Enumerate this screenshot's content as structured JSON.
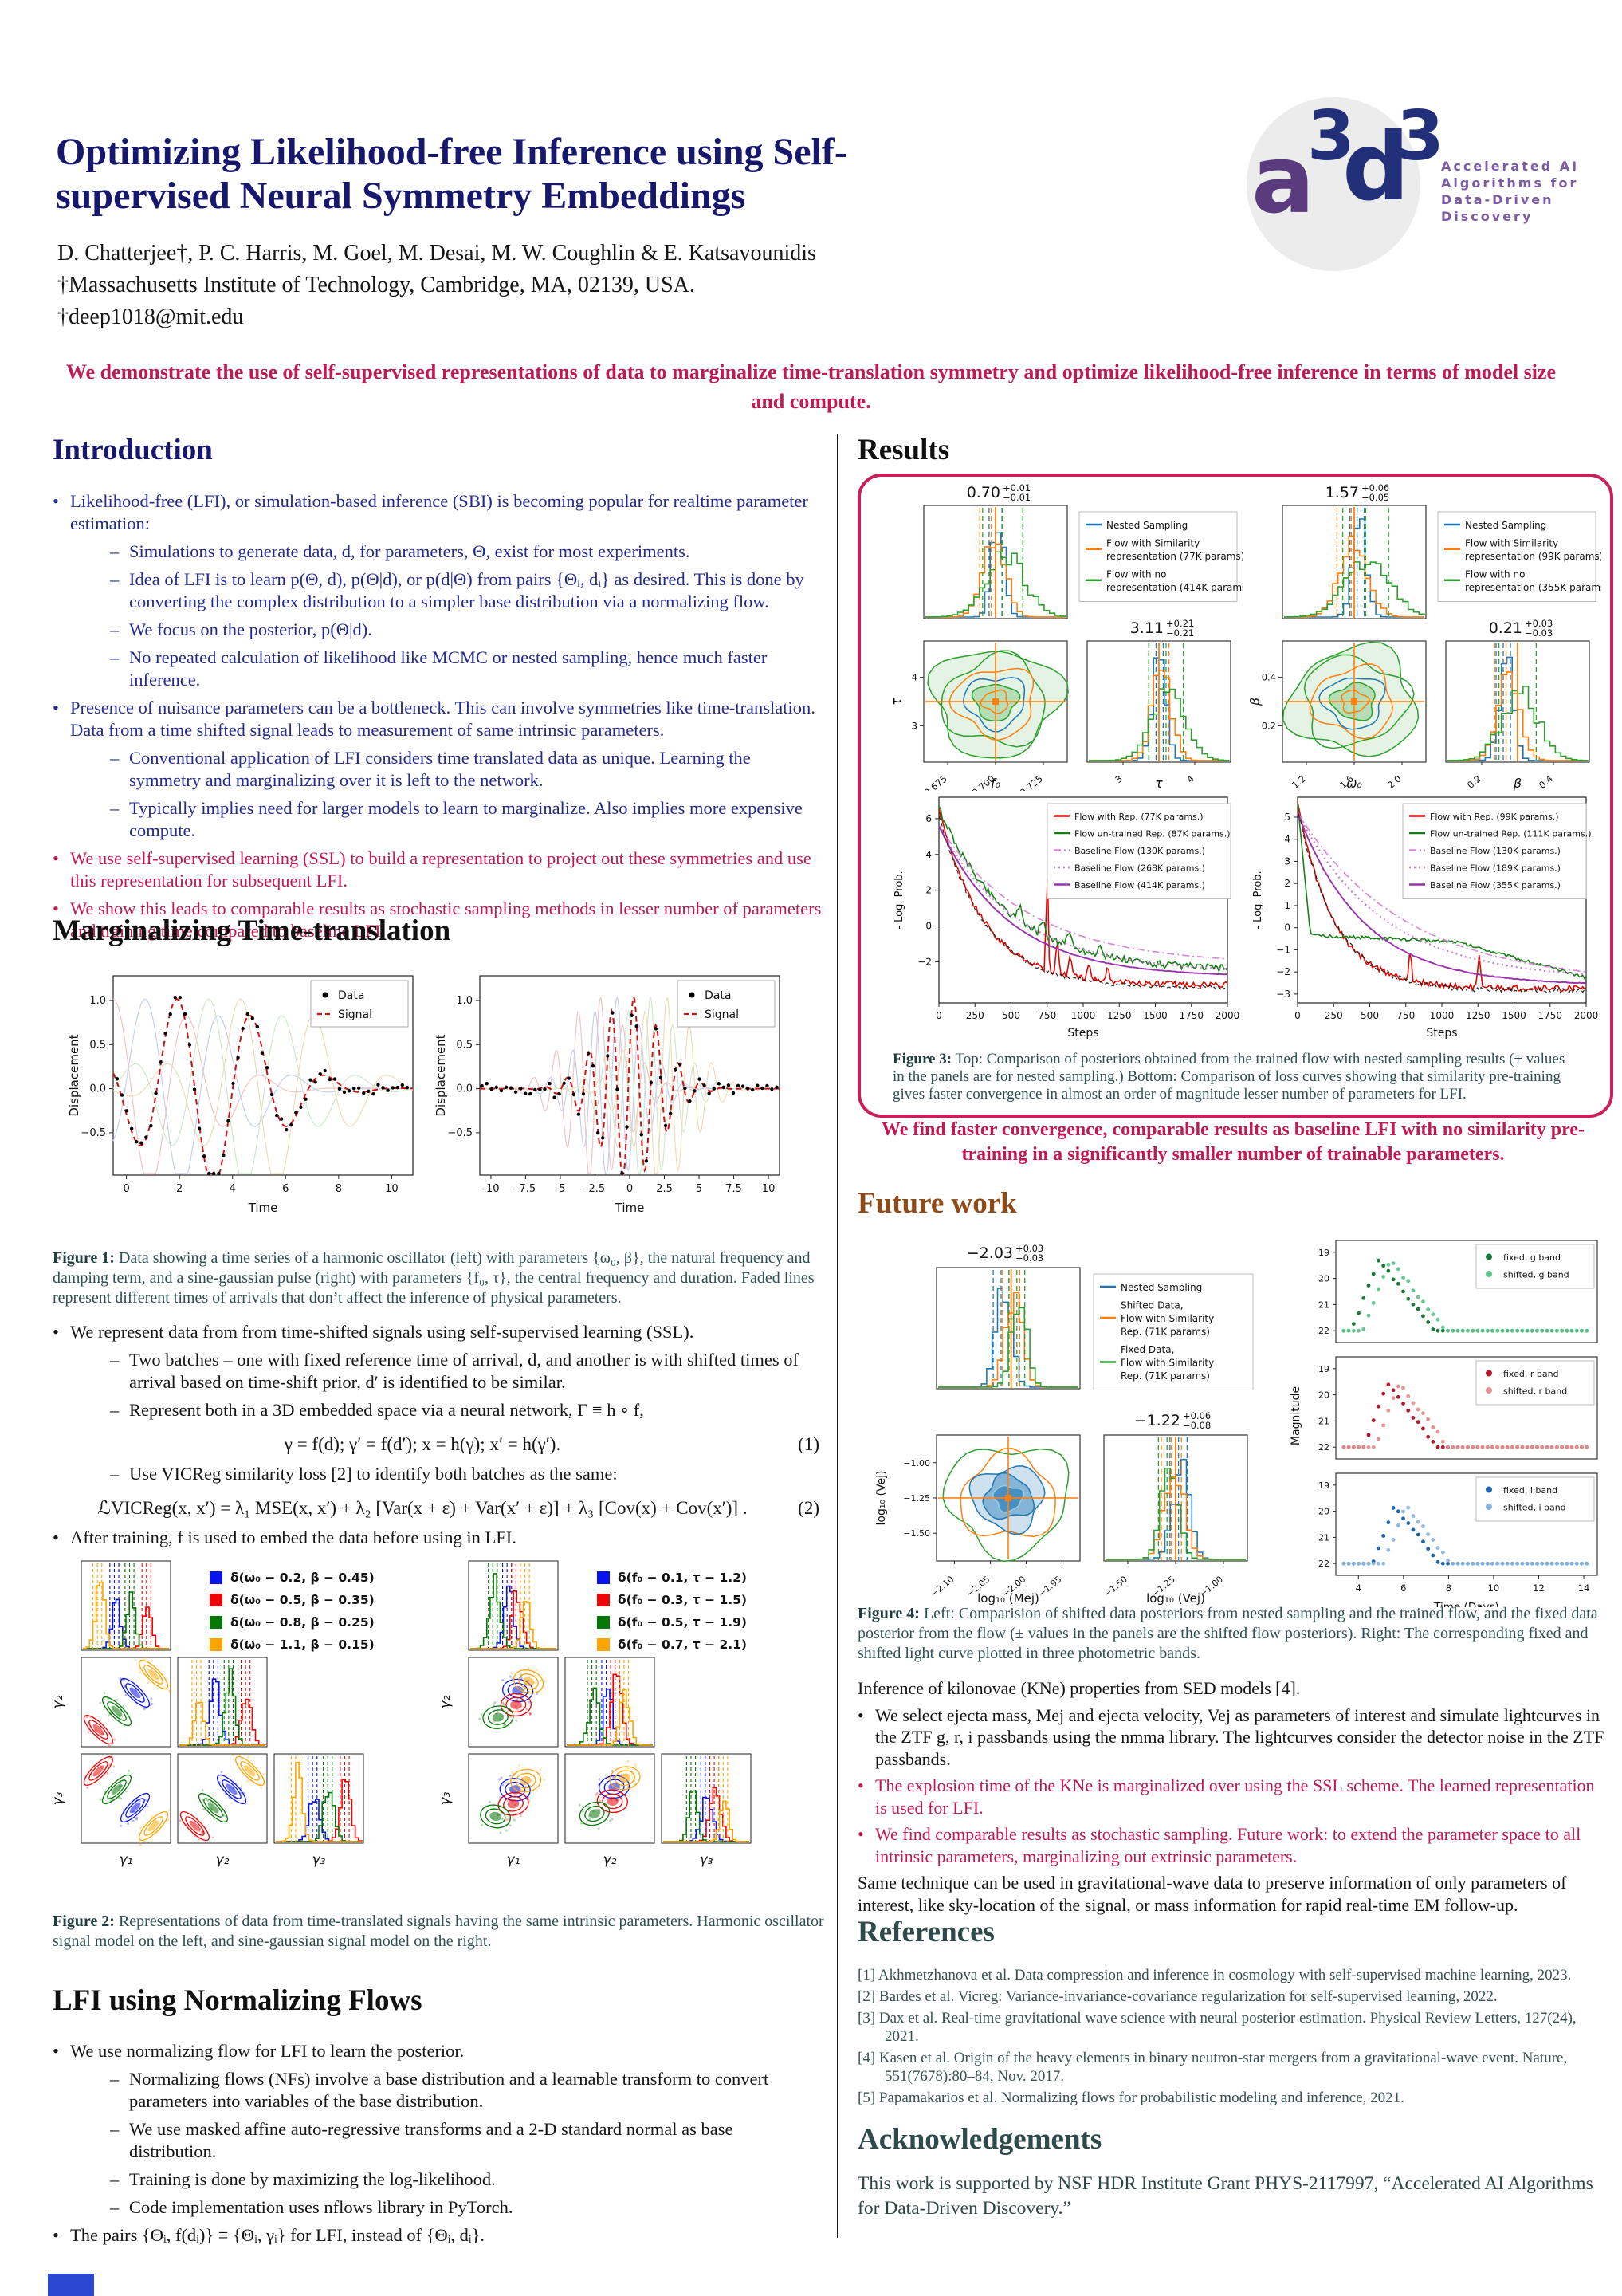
{
  "header": {
    "title_line1": "Optimizing Likelihood-free Inference using Self-",
    "title_line2": "supervised Neural Symmetry Embeddings",
    "authors": "D. Chatterjee†, P. C. Harris, M. Goel, M. Desai, M. W. Coughlin & E. Katsavounidis",
    "affiliation": "†Massachusetts Institute of Technology, Cambridge, MA, 02139, USA.",
    "email": "†deep1018@mit.edu",
    "logo": {
      "letters": [
        "a",
        "3",
        "d",
        "3"
      ],
      "tagline": [
        "Accelerated AI",
        "Algorithms for",
        "Data-Driven",
        "Discovery"
      ]
    }
  },
  "abstract": "We demonstrate the use of self-supervised representations of data to marginalize time-translation symmetry and optimize likelihood-free inference in terms of model size and compute.",
  "sections": {
    "introduction": {
      "heading": "Introduction",
      "items": [
        {
          "m": "•",
          "c": "blue",
          "t": "Likelihood-free (LFI), or simulation-based inference (SBI) is becoming popular for realtime parameter estimation:"
        },
        {
          "m": "–",
          "c": "blue",
          "t": "Simulations to generate data, d, for parameters, Θ, exist for most experiments."
        },
        {
          "m": "–",
          "c": "blue",
          "t": "Idea of LFI is to learn p(Θ, d), p(Θ|d), or p(d|Θ) from pairs {Θᵢ, dᵢ} as desired. This is done by converting the complex distribution to a simpler base distribution via a normalizing flow."
        },
        {
          "m": "–",
          "c": "blue",
          "t": "We focus on the posterior, p(Θ|d)."
        },
        {
          "m": "–",
          "c": "blue",
          "t": "No repeated calculation of likelihood like MCMC or nested sampling, hence much faster inference."
        },
        {
          "m": "•",
          "c": "blue",
          "t": "Presence of nuisance parameters can be a bottleneck.  This can involve symmetries like time-translation. Data from a time shifted signal leads to measurement of same intrinsic parameters."
        },
        {
          "m": "–",
          "c": "blue",
          "t": "Conventional application of LFI considers time translated data as unique. Learning the symmetry and marginalizing over it is left to the network."
        },
        {
          "m": "–",
          "c": "blue",
          "t": "Typically implies need for larger models to learn to marginalize. Also implies more expensive compute."
        },
        {
          "m": "•",
          "c": "red",
          "t": "We use self-supervised learning (SSL) to build a representation to project out these symmetries and use this representation for subsequent LFI."
        },
        {
          "m": "•",
          "c": "red",
          "t": "We show this leads to comparable results as stochastic sampling methods in lesser number of parameters and training time compared to baseline LFI."
        }
      ]
    },
    "marginalizing": {
      "heading": "Marginalizing Time-translation",
      "fig1": {
        "caption_label": "Figure 1:",
        "caption": "Data showing a time series of a harmonic oscillator (left) with parameters {ω₀, β}, the natural frequency and damping term, and a sine-gaussian pulse (right) with parameters {f₀, τ}, the central frequency and duration. Faded lines represent different times of arrivals that don’t affect the inference of physical parameters.",
        "panels": [
          {
            "type": "damped",
            "legend": [
              "Data",
              "Signal"
            ],
            "ylabel": "Displacement",
            "xlabel": "Time",
            "xticks": [
              0,
              2,
              4,
              6,
              8,
              10
            ],
            "yticks": [
              "1.0",
              "0.5",
              "0.0",
              "−0.5"
            ]
          },
          {
            "type": "sinegauss",
            "legend": [
              "Data",
              "Signal"
            ],
            "ylabel": "Displacement",
            "xlabel": "Time",
            "xticks": [
              -10,
              -7.5,
              -5,
              -2.5,
              0,
              2.5,
              5,
              7.5,
              10
            ],
            "yticks": [
              "1.0",
              "0.5",
              "0.0",
              "−0.5"
            ]
          }
        ]
      },
      "items": [
        {
          "m": "•",
          "c": "black",
          "t": "We represent data from from time-shifted signals using self-supervised learning (SSL)."
        },
        {
          "m": "–",
          "c": "black",
          "t": "Two batches – one with fixed reference time of arrival, d, and another is with shifted times of arrival based on time-shift prior, d′ is identified to be similar."
        },
        {
          "m": "–",
          "c": "black",
          "t": "Represent both in a 3D embedded space via a neural network, Γ ≡ h ∘ f,"
        },
        {
          "eq": true,
          "t": "γ = f(d);   γ′ = f(d′);   x = h(γ);   x′ = h(γ′).",
          "num": "(1)"
        },
        {
          "m": "–",
          "c": "black",
          "t": "Use VICReg similarity loss [2] to identify both batches as the same:"
        },
        {
          "eq": true,
          "t": "ℒVICReg(x, x′) = λ₁ MSE(x, x′) + λ₂ [Var(x + ε) + Var(x′ + ε)] + λ₃ [Cov(x) + Cov(x′)] .",
          "num": "(2)"
        },
        {
          "m": "•",
          "c": "black",
          "t": "After training, f is used to embed the data before using in LFI."
        }
      ],
      "fig2": {
        "caption_label": "Figure 2:",
        "caption": "Representations of data from time-translated signals having the same intrinsic parameters. Harmonic oscillator signal model on the left, and sine-gaussian signal model on the right.",
        "plots": [
          {
            "mode": "diag",
            "colors": [
              "#0713ee",
              "#ee0404",
              "#067806",
              "#ffa500"
            ],
            "legend": [
              "δ(ω₀ − 0.2, β − 0.45)",
              "δ(ω₀ − 0.5, β − 0.35)",
              "δ(ω₀ − 0.8, β − 0.25)",
              "δ(ω₀ − 1.1, β − 0.15)"
            ],
            "xlabels": [
              "γ₁",
              "γ₂",
              "γ₃"
            ],
            "ylabels": [
              "γ₂",
              "γ₃"
            ]
          },
          {
            "mode": "cluster",
            "colors": [
              "#0713ee",
              "#ee0404",
              "#067806",
              "#ffa500"
            ],
            "legend": [
              "δ(f₀ − 0.1, τ − 1.2)",
              "δ(f₀ − 0.3, τ − 1.5)",
              "δ(f₀ − 0.5, τ − 1.9)",
              "δ(f₀ − 0.7, τ − 2.1)"
            ],
            "xlabels": [
              "γ₁",
              "γ₂",
              "γ₃"
            ],
            "ylabels": [
              "γ₂",
              "γ₃"
            ]
          }
        ]
      }
    },
    "lfi": {
      "heading": "LFI using Normalizing Flows",
      "items": [
        {
          "m": "•",
          "c": "black",
          "t": "We use normalizing flow for LFI to learn the posterior."
        },
        {
          "m": "–",
          "c": "black",
          "t": "Normalizing flows (NFs) involve a base distribution and a learnable transform to convert parameters into variables of the base distribution."
        },
        {
          "m": "–",
          "c": "black",
          "t": "We use masked affine auto-regressive transforms and a 2-D standard normal as base distribution."
        },
        {
          "m": "–",
          "c": "black",
          "t": "Training is done by maximizing the log-likelihood."
        },
        {
          "m": "–",
          "c": "black",
          "t": "Code implementation uses nflows library in PyTorch."
        },
        {
          "m": "•",
          "c": "black",
          "t": "The pairs {Θᵢ, f(dᵢ)} ≡ {Θᵢ, γᵢ} for LFI, instead of {Θᵢ, dᵢ}."
        }
      ]
    },
    "results": {
      "heading": "Results",
      "fig3": {
        "groups": [
          {
            "title1": {
              "val": "0.70",
              "plus": "+0.01",
              "minus": "−0.01"
            },
            "title2": {
              "val": "3.11",
              "plus": "+0.21",
              "minus": "−0.21"
            },
            "legend": [
              [
                "Nested Sampling"
              ],
              [
                "Flow with Similarity",
                "representation  (77K params)"
              ],
              [
                "Flow with no",
                "representation (414K params)"
              ]
            ],
            "ylabel": "τ",
            "yticks": [
              "4",
              "3"
            ],
            "xticks1": [
              "0.675",
              "0.700",
              "0.725"
            ],
            "xlabel1": "f₀",
            "xticks2": [
              "3",
              "4"
            ],
            "xlabel2": "τ"
          },
          {
            "title1": {
              "val": "1.57",
              "plus": "+0.06",
              "minus": "−0.05"
            },
            "title2": {
              "val": "0.21",
              "plus": "+0.03",
              "minus": "−0.03"
            },
            "legend": [
              [
                "Nested Sampling"
              ],
              [
                "Flow with Similarity",
                "representation  (99K params)"
              ],
              [
                "Flow with no",
                "representation (355K params)"
              ]
            ],
            "ylabel": "β",
            "yticks": [
              "0.4",
              "0.2"
            ],
            "xticks1": [
              "1.2",
              "1.6",
              "2.0"
            ],
            "xlabel1": "ω₀",
            "xticks2": [
              "0.2",
              "0.4"
            ],
            "xlabel2": "β"
          }
        ],
        "loss": [
          {
            "legend": [
              "Flow with Rep. (77K params.)",
              "Flow un-trained Rep. (87K params.)",
              "Baseline Flow (130K params.)",
              "Baseline Flow (268K params.)",
              "Baseline Flow (414K params.)"
            ],
            "ylabel": "- Log. Prob.",
            "xlabel": "Steps",
            "yticks": [
              "6",
              "4",
              "2",
              "0",
              "−2"
            ],
            "xticks": [
              0,
              250,
              500,
              750,
              1000,
              1250,
              1500,
              1750,
              2000
            ]
          },
          {
            "legend": [
              "Flow with Rep. (99K params.)",
              "Flow un-trained Rep. (111K params.)",
              "Baseline Flow (130K params.)",
              "Baseline Flow (189K params.)",
              "Baseline Flow (355K params.)"
            ],
            "ylabel": "- Log. Prob.",
            "xlabel": "Steps",
            "yticks": [
              "5",
              "4",
              "3",
              "2",
              "1",
              "0",
              "−1",
              "−2",
              "−3"
            ],
            "xticks": [
              0,
              250,
              500,
              750,
              1000,
              1250,
              1500,
              1750,
              2000
            ]
          }
        ],
        "caption_label": "Figure 3:",
        "caption": "Top: Comparison of posteriors obtained from the trained flow with nested sampling results (± values in the panels are for nested sampling.) Bottom: Comparison of loss curves showing that similarity pre-training gives faster convergence in almost an order of magnitude lesser number of parameters for LFI."
      },
      "highlight": "We find faster convergence, comparable results as baseline LFI with no similarity pre-training in a significantly smaller number of trainable parameters."
    },
    "futurework": {
      "heading": "Future work",
      "fig4": {
        "corner": {
          "title1": {
            "val": "−2.03",
            "plus": "+0.03",
            "minus": "−0.03"
          },
          "title2": {
            "val": "−1.22",
            "plus": "+0.06",
            "minus": "−0.08"
          },
          "legend": [
            [
              "Nested Sampling"
            ],
            [
              "Shifted Data,",
              "Flow with Similarity",
              "Rep. (71K params)"
            ],
            [
              "Fixed Data,",
              "Flow with Similarity",
              "Rep. (71K params)"
            ]
          ],
          "ylabel": "log₁₀ (Vej)",
          "yticks": [
            "−1.00",
            "−1.25",
            "−1.50"
          ],
          "xticks1": [
            "−2.10",
            "−2.05",
            "−2.00",
            "−1.95"
          ],
          "xlabel1": "log₁₀ (Mej)",
          "xticks2": [
            "−1.50",
            "−1.25",
            "−1.00"
          ],
          "xlabel2": "log₁₀ (Vej)"
        },
        "lightcurves": {
          "ylabel": "Magnitude",
          "xlabel": "Time (Days)",
          "xticks": [
            4,
            6,
            8,
            10,
            12,
            14
          ],
          "panels": [
            {
              "legend": [
                "fixed, g band",
                "shifted, g band"
              ],
              "colors": [
                "#1b7837",
                "#5fc48e"
              ],
              "yticks": [
                19,
                20,
                21,
                22
              ]
            },
            {
              "legend": [
                "fixed, r band",
                "shifted, r band"
              ],
              "colors": [
                "#b2182b",
                "#e58f8f"
              ],
              "yticks": [
                19,
                20,
                21,
                22
              ]
            },
            {
              "legend": [
                "fixed, i band",
                "shifted, i band"
              ],
              "colors": [
                "#2166ac",
                "#8ab4e0"
              ],
              "yticks": [
                19,
                20,
                21,
                22
              ]
            }
          ]
        },
        "caption_label": "Figure 4:",
        "caption": "Left: Comparision of shifted data posteriors from nested sampling and the trained flow, and the fixed data posterior from the flow (± values in the panels are the shifted flow posteriors). Right: The corresponding fixed and shifted light curve plotted in three photometric bands."
      },
      "items": [
        {
          "m": "",
          "c": "black",
          "t": "Inference of kilonovae (KNe) properties from SED models [4]."
        },
        {
          "m": "•",
          "c": "black",
          "t": "We select ejecta mass, Mej and ejecta velocity, Vej as parameters of interest and simulate lightcurves in the ZTF g, r, i passbands using the nmma library. The lightcurves consider the detector noise in the ZTF passbands."
        },
        {
          "m": "•",
          "c": "red",
          "t": "The explosion time of the KNe is marginalized over using the SSL scheme. The learned representation is used for LFI."
        },
        {
          "m": "•",
          "c": "red",
          "t": "We find comparable results as stochastic sampling. Future work: to extend the parameter space to all intrinsic parameters, marginalizing out extrinsic parameters."
        },
        {
          "m": "",
          "c": "black",
          "t": "Same technique can be used in gravitational-wave data to preserve information of only parameters of interest, like sky-location of the signal, or mass information for rapid real-time EM follow-up."
        }
      ]
    },
    "references": {
      "heading": "References",
      "items": [
        "[1] Akhmetzhanova et al.  Data compression and inference in cosmology with self-supervised machine learning, 2023.",
        "[2] Bardes et al.  Vicreg: Variance-invariance-covariance regularization for self-supervised learning, 2022.",
        "[3] Dax et al.  Real-time gravitational wave science with neural posterior estimation.  Physical Review Letters, 127(24), 2021.",
        "[4] Kasen et al.  Origin of the heavy elements in binary neutron-star mergers from a gravitational-wave event.  Nature, 551(7678):80–84, Nov. 2017.",
        "[5] Papamakarios et al.  Normalizing flows for probabilistic modeling and inference, 2021."
      ]
    },
    "acknowledgements": {
      "heading": "Acknowledgements",
      "text": "This work is supported by NSF HDR Institute Grant PHYS-2117997, “Accelerated AI Algorithms for Data-Driven Discovery.”"
    }
  }
}
